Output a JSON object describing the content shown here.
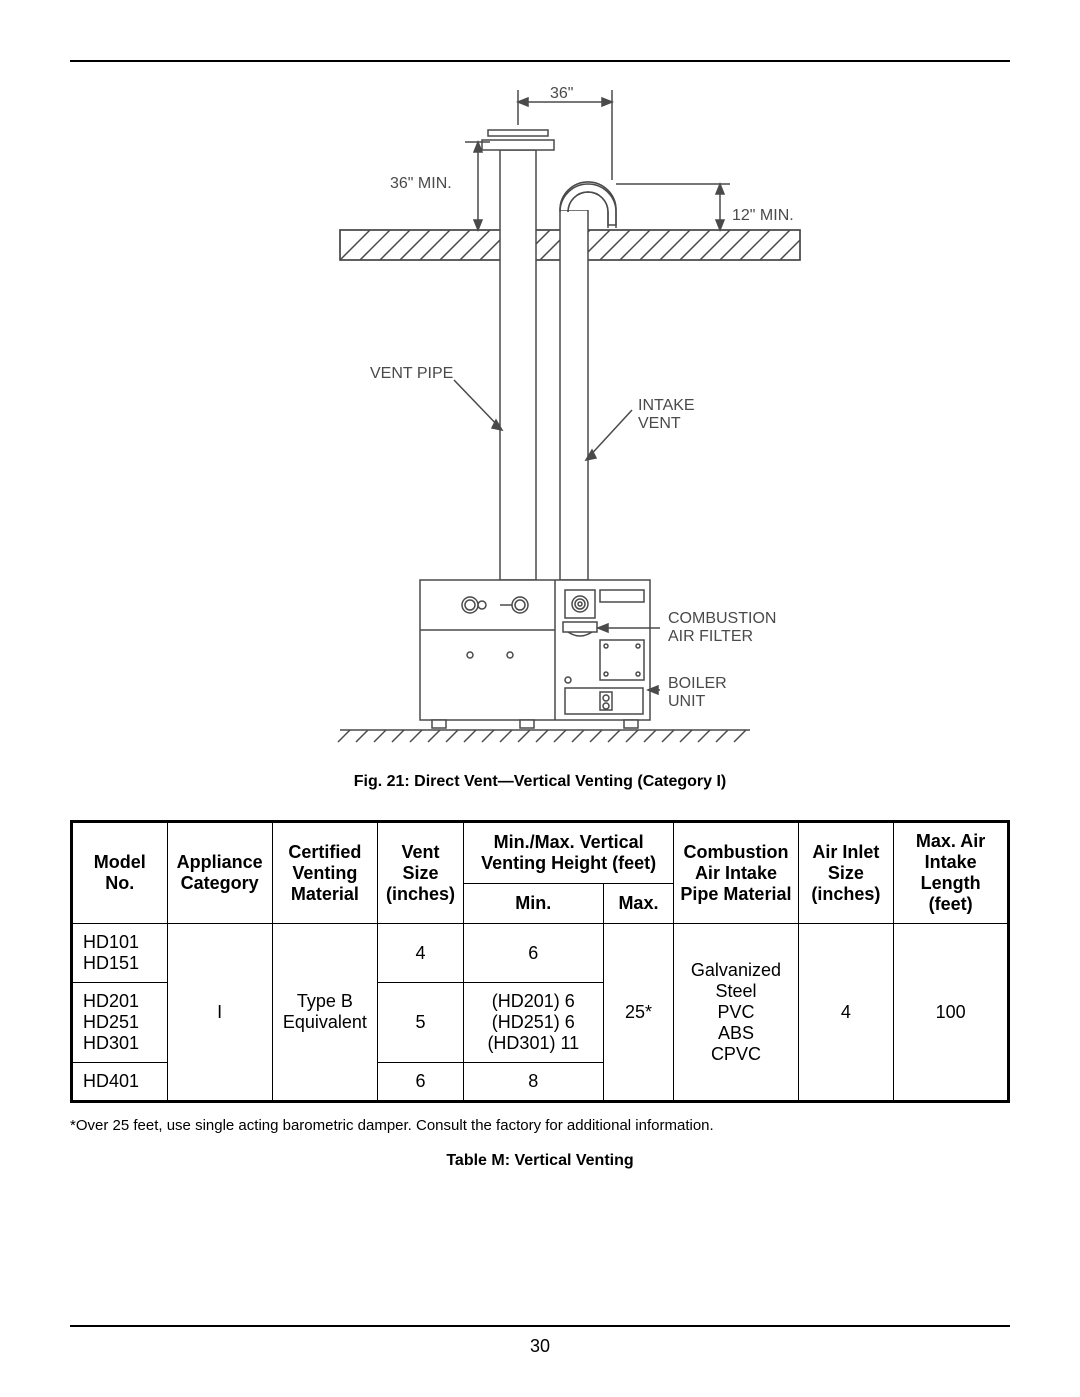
{
  "page_number": "30",
  "diagram": {
    "caption": "Fig. 21: Direct Vent—Vertical Venting (Category I)",
    "labels": {
      "dim_top": "36\"",
      "dim_left": "36\"  MIN.",
      "dim_right": "12\"  MIN.",
      "vent_pipe": "VENT  PIPE",
      "intake_vent_1": "INTAKE",
      "intake_vent_2": "VENT",
      "comb_filter_1": "COMBUSTION",
      "comb_filter_2": "AIR  FILTER",
      "boiler_1": "BOILER",
      "boiler_2": "UNIT"
    },
    "stroke_color": "#4a4a4a",
    "fill_color": "#ffffff"
  },
  "table": {
    "caption": "Table M: Vertical Venting",
    "footnote": "*Over 25 feet, use single acting barometric damper. Consult the factory for additional information.",
    "headers": {
      "model": "Model No.",
      "appliance": "Appliance Category",
      "certified": "Certified Venting Material",
      "vent_size": "Vent Size (inches)",
      "minmax": "Min./Max. Vertical Venting Height (feet)",
      "min": "Min.",
      "max": "Max.",
      "combustion": "Combustion Air Intake Pipe Material",
      "air_inlet": "Air Inlet Size (inches)",
      "max_air": "Max. Air Intake Length (feet)"
    },
    "rows": [
      {
        "model": "HD101\nHD151",
        "vent_size": "4",
        "min": "6"
      },
      {
        "model": "HD201\nHD251\nHD301",
        "vent_size": "5",
        "min": "(HD201) 6\n(HD251) 6\n(HD301) 11"
      },
      {
        "model": "HD401",
        "vent_size": "6",
        "min": "8"
      }
    ],
    "shared": {
      "appliance": "I",
      "certified": "Type B Equivalent",
      "max": "25*",
      "combustion": "Galvanized\nSteel\nPVC\nABS\nCPVC",
      "air_inlet": "4",
      "max_air": "100"
    }
  }
}
